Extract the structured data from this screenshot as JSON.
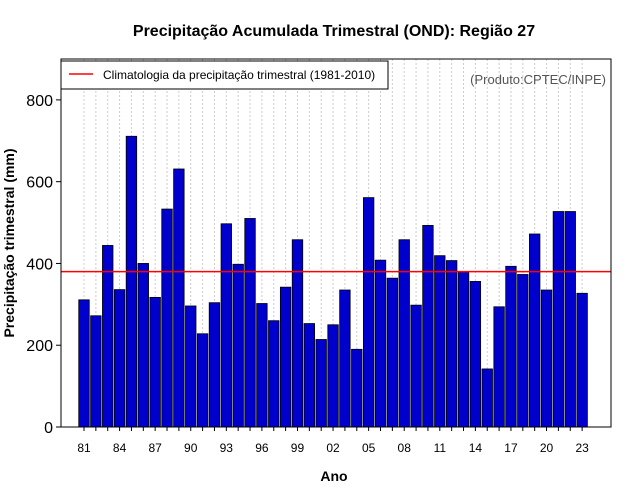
{
  "chart_data": {
    "type": "bar",
    "title": "Precipitação Acumulada Trimestral (OND): Região 27",
    "xlabel": "Ano",
    "ylabel": "Precipitação trimestral (mm)",
    "ylim": [
      0,
      900
    ],
    "yticks": [
      0,
      200,
      400,
      600,
      800
    ],
    "grid": true,
    "credit": "(Produto:CPTEC/INPE)",
    "legend": {
      "label": "Climatologia da precipitação trimestral (1981-2010)",
      "position": "top-left"
    },
    "climatology": 380,
    "categories": [
      "1981",
      "1982",
      "1983",
      "1984",
      "1985",
      "1986",
      "1987",
      "1988",
      "1989",
      "1990",
      "1991",
      "1992",
      "1993",
      "1994",
      "1995",
      "1996",
      "1997",
      "1998",
      "1999",
      "2000",
      "2001",
      "2002",
      "2003",
      "2004",
      "2005",
      "2006",
      "2007",
      "2008",
      "2009",
      "2010",
      "2011",
      "2012",
      "2013",
      "2014",
      "2015",
      "2016",
      "2017",
      "2018",
      "2019",
      "2020",
      "2021",
      "2022",
      "2023"
    ],
    "values": [
      311,
      272,
      444,
      336,
      711,
      400,
      317,
      533,
      631,
      296,
      228,
      304,
      497,
      398,
      510,
      302,
      260,
      342,
      458,
      253,
      214,
      250,
      335,
      190,
      561,
      408,
      364,
      458,
      298,
      493,
      419,
      407,
      379,
      356,
      142,
      294,
      393,
      373,
      472,
      335,
      527,
      527,
      327
    ],
    "xtick_labels": [
      "81",
      "84",
      "87",
      "90",
      "93",
      "96",
      "99",
      "02",
      "05",
      "08",
      "11",
      "14",
      "17",
      "20",
      "23"
    ],
    "colors": {
      "bar": "#0000cd",
      "bar_edge": "#000000",
      "climatology": "#ff0000",
      "grid": "#cccccc"
    }
  }
}
